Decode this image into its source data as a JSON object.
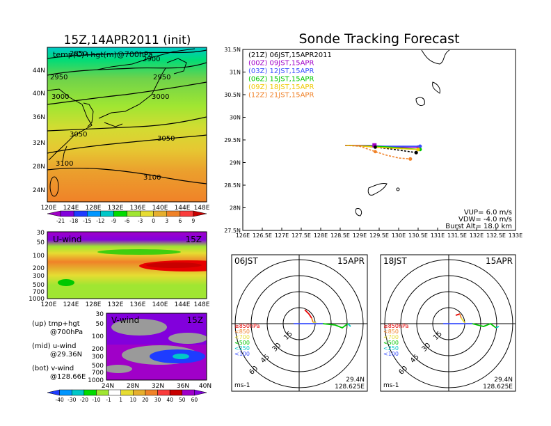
{
  "map": {
    "title": "15Z,14APR2011 (init)",
    "overlay_label": "temp(C)+hgt(m)@700hPa",
    "lat_labels": [
      "44N",
      "40N",
      "36N",
      "32N",
      "28N",
      "24N"
    ],
    "lon_labels": [
      "120E",
      "124E",
      "128E",
      "132E",
      "136E",
      "140E",
      "144E",
      "148E"
    ],
    "contour_labels": [
      "2850",
      "2900",
      "2950",
      "2950",
      "3000",
      "3000",
      "3050",
      "3050",
      "3100",
      "3100"
    ]
  },
  "colorbar_top": {
    "labels": [
      "-21",
      "-18",
      "-15",
      "-12",
      "-9",
      "-6",
      "-3",
      "0",
      "3",
      "6",
      "9"
    ],
    "colors": [
      "#a000c8",
      "#8200dc",
      "#1e3cff",
      "#0096ff",
      "#00c8c8",
      "#00dc00",
      "#a0e632",
      "#e6dc32",
      "#e6af2d",
      "#f08228",
      "#fa3c3c",
      "#c80000"
    ]
  },
  "uwind": {
    "label": "U-wind",
    "time": "15Z",
    "pressure_labels": [
      "30",
      "50",
      "100",
      "200",
      "300",
      "500",
      "700",
      "1000"
    ],
    "lon_labels": [
      "120E",
      "124E",
      "128E",
      "132E",
      "136E",
      "140E",
      "144E",
      "148E"
    ]
  },
  "vwind": {
    "label": "V-wind",
    "time": "15Z",
    "pressure_labels": [
      "30",
      "50",
      "100",
      "200",
      "300",
      "500",
      "700",
      "1000"
    ],
    "lat_labels": [
      "24N",
      "28N",
      "32N",
      "36N",
      "40N"
    ]
  },
  "colorbar_bottom": {
    "labels": [
      "-40",
      "-30",
      "-20",
      "-10",
      "-1",
      "1",
      "10",
      "20",
      "30",
      "40",
      "50",
      "60"
    ],
    "colors": [
      "#1e3cff",
      "#0096ff",
      "#00c8c8",
      "#00dc00",
      "#a0e632",
      "#ffffff",
      "#e6dc32",
      "#e6af2d",
      "#f08228",
      "#fa3c3c",
      "#c80000",
      "#a000c8",
      "#8200dc"
    ]
  },
  "legend_notes": [
    {
      "top": "(up) tmp+hgt",
      "bottom": "@700hPa"
    },
    {
      "top": "(mid) u-wind",
      "bottom": "@29.36N"
    },
    {
      "top": "(bot) v-wind",
      "bottom": "@128.66E"
    }
  ],
  "tracking": {
    "title": "Sonde Tracking Forecast",
    "runs": [
      {
        "label": "(21Z) 06JST,15APR2011",
        "color": "#000000"
      },
      {
        "label": "(00Z) 09JST,15APR",
        "color": "#a000c8"
      },
      {
        "label": "(03Z) 12JST,15APR",
        "color": "#3c50ff"
      },
      {
        "label": "(06Z) 15JST,15APR",
        "color": "#00c800"
      },
      {
        "label": "(09Z) 18JST,15APR",
        "color": "#f0c800"
      },
      {
        "label": "(12Z) 21JST,15APR",
        "color": "#f08228"
      }
    ],
    "info": [
      "VUP= 6.0 m/s",
      "VDW= -4.0 m/s",
      "Burst Alt= 18.0 km"
    ]
  },
  "hodo_left": {
    "time": "06JST",
    "date": "15APR",
    "lat": "29.4N",
    "lon": "128.625E",
    "unit": "ms-1",
    "ring_labels": [
      "15",
      "30",
      "45",
      "60"
    ]
  },
  "hodo_right": {
    "time": "18JST",
    "date": "15APR",
    "lat": "29.4N",
    "lon": "128.625E",
    "unit": "ms-1",
    "ring_labels": [
      "15",
      "30",
      "45",
      "60"
    ]
  },
  "hodo_levels": [
    {
      "label": "≥850hPa",
      "color": "#e60000"
    },
    {
      "label": "<850",
      "color": "#f08228"
    },
    {
      "label": "<700",
      "color": "#e6dc32"
    },
    {
      "label": "<500",
      "color": "#00c800"
    },
    {
      "label": "<250",
      "color": "#00c8c8"
    },
    {
      "label": "<100",
      "color": "#3c50ff"
    }
  ],
  "chart_data": {
    "type": "line",
    "title": "Sonde Tracking Forecast",
    "x_ticks": [
      "126E",
      "126.5E",
      "127E",
      "127.5E",
      "128E",
      "128.5E",
      "129E",
      "129.5E",
      "130E",
      "130.5E",
      "131E",
      "131.5E",
      "132E",
      "132.5E",
      "133E"
    ],
    "y_ticks": [
      "27.5N",
      "28N",
      "28.5N",
      "29N",
      "29.5N",
      "30N",
      "30.5N",
      "31N",
      "31.5N"
    ],
    "xlim": [
      126,
      133
    ],
    "ylim": [
      27.5,
      31.5
    ],
    "series": [
      {
        "name": "(21Z) 06JST,15APR2011",
        "color": "#000000",
        "dashed": true,
        "points": [
          [
            128.63,
            29.38
          ],
          [
            129.0,
            29.37
          ],
          [
            129.4,
            29.34
          ],
          [
            129.8,
            29.3
          ],
          [
            130.2,
            29.25
          ],
          [
            130.45,
            29.22
          ]
        ]
      },
      {
        "name": "(00Z) 09JST,15APR",
        "color": "#a000c8",
        "dashed": false,
        "points": [
          [
            128.63,
            29.38
          ],
          [
            129.0,
            29.38
          ],
          [
            129.4,
            29.37
          ],
          [
            129.8,
            29.35
          ],
          [
            130.2,
            29.34
          ],
          [
            130.5,
            29.34
          ]
        ]
      },
      {
        "name": "(03Z) 12JST,15APR",
        "color": "#3c50ff",
        "dashed": false,
        "points": [
          [
            128.63,
            29.38
          ],
          [
            129.0,
            29.37
          ],
          [
            129.4,
            29.36
          ],
          [
            129.8,
            29.36
          ],
          [
            130.2,
            29.36
          ],
          [
            130.55,
            29.36
          ]
        ]
      },
      {
        "name": "(06Z) 15JST,15APR",
        "color": "#00c800",
        "dashed": false,
        "points": [
          [
            128.63,
            29.38
          ],
          [
            129.0,
            29.37
          ],
          [
            129.4,
            29.36
          ],
          [
            129.8,
            29.34
          ],
          [
            130.2,
            29.31
          ],
          [
            130.55,
            29.29
          ]
        ]
      },
      {
        "name": "(09Z) 18JST,15APR",
        "color": "#f0c800",
        "dashed": false,
        "points": [
          [
            128.63,
            29.38
          ],
          [
            129.0,
            29.37
          ],
          [
            129.4,
            29.34
          ],
          [
            129.8,
            29.32
          ],
          [
            130.2,
            29.3
          ],
          [
            130.5,
            29.29
          ]
        ]
      },
      {
        "name": "(12Z) 21JST,15APR",
        "color": "#f08228",
        "dashed": true,
        "points": [
          [
            128.63,
            29.38
          ],
          [
            129.0,
            29.36
          ],
          [
            129.4,
            29.24
          ],
          [
            129.7,
            29.16
          ],
          [
            130.0,
            29.1
          ],
          [
            130.3,
            29.08
          ]
        ]
      }
    ]
  }
}
